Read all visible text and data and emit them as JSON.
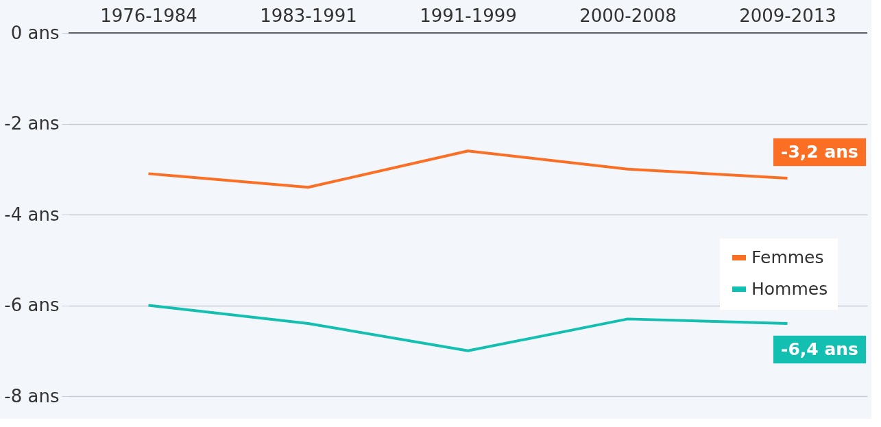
{
  "chart_data": {
    "type": "line",
    "categories": [
      "1976-1984",
      "1983-1991",
      "1991-1999",
      "2000-2008",
      "2009-2013"
    ],
    "series": [
      {
        "name": "Femmes",
        "color": "#fb6f24",
        "values": [
          -3.1,
          -3.4,
          -2.6,
          -3.0,
          -3.2
        ],
        "value_labels": [
          null,
          null,
          null,
          null,
          "-3,2 ans"
        ]
      },
      {
        "name": "Hommes",
        "color": "#13bfb0",
        "values": [
          -6.0,
          -6.4,
          -7.0,
          -6.3,
          -6.4
        ],
        "value_labels": [
          null,
          null,
          null,
          null,
          "-6,4 ans"
        ]
      }
    ],
    "ylim": [
      -8,
      0
    ],
    "yticks": [
      {
        "value": 0,
        "label": "0 ans"
      },
      {
        "value": -2,
        "label": "-2 ans"
      },
      {
        "value": -4,
        "label": "-4 ans"
      },
      {
        "value": -6,
        "label": "-6 ans"
      },
      {
        "value": -8,
        "label": "-8 ans"
      }
    ],
    "grid": "y",
    "legend": "right",
    "marker": "none",
    "line_style": "solid"
  }
}
